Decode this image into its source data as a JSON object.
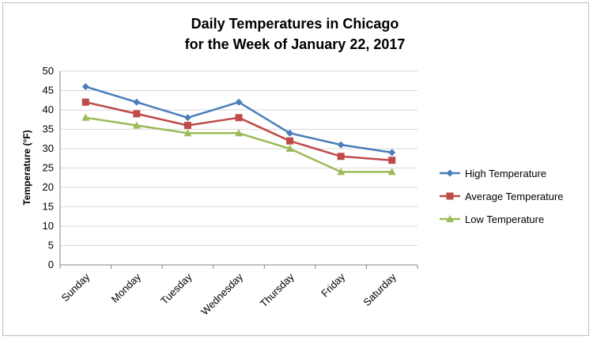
{
  "chart_data": {
    "type": "line",
    "title_line1": "Daily Temperatures in Chicago",
    "title_line2": "for the Week of January 22, 2017",
    "ylabel": "Temperature (°F)",
    "xlabel": "",
    "categories": [
      "Sunday",
      "Monday",
      "Tuesday",
      "Wednesday",
      "Thursday",
      "Friday",
      "Saturday"
    ],
    "ylim": [
      0,
      50
    ],
    "ytick_step": 5,
    "grid": true,
    "legend_position": "right",
    "series": [
      {
        "name": "High Temperature",
        "values": [
          46,
          42,
          38,
          42,
          34,
          31,
          29
        ],
        "color": "#4a7ebb",
        "marker": "diamond"
      },
      {
        "name": "Average Temperature",
        "values": [
          42,
          39,
          36,
          38,
          32,
          28,
          27
        ],
        "color": "#be4b48",
        "marker": "square"
      },
      {
        "name": "Low Temperature",
        "values": [
          38,
          36,
          34,
          34,
          30,
          24,
          24
        ],
        "color": "#9bbb59",
        "marker": "triangle"
      }
    ]
  }
}
